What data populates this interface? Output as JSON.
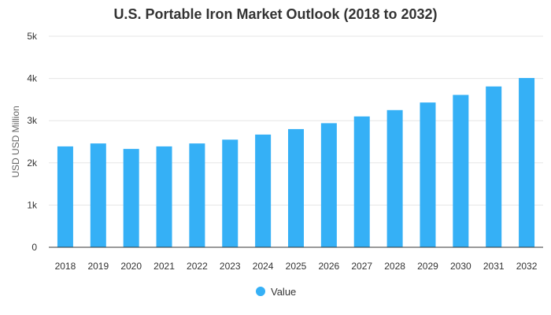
{
  "chart_data": {
    "type": "bar",
    "title": "U.S. Portable Iron Market Outlook (2018 to 2032)",
    "xlabel": "",
    "ylabel": "USD USD Million",
    "ylim": [
      0,
      5000
    ],
    "yticks": [
      0,
      1000,
      2000,
      3000,
      4000,
      5000
    ],
    "ytick_labels": [
      "0",
      "1k",
      "2k",
      "3k",
      "4k",
      "5k"
    ],
    "categories": [
      "2018",
      "2019",
      "2020",
      "2021",
      "2022",
      "2023",
      "2024",
      "2025",
      "2026",
      "2027",
      "2028",
      "2029",
      "2030",
      "2031",
      "2032"
    ],
    "series": [
      {
        "name": "Value",
        "values": [
          2390,
          2460,
          2330,
          2390,
          2460,
          2550,
          2670,
          2800,
          2940,
          3100,
          3250,
          3430,
          3610,
          3810,
          4010
        ]
      }
    ],
    "bar_color": "#35b0f6",
    "grid": true,
    "legend_position": "bottom-center"
  }
}
